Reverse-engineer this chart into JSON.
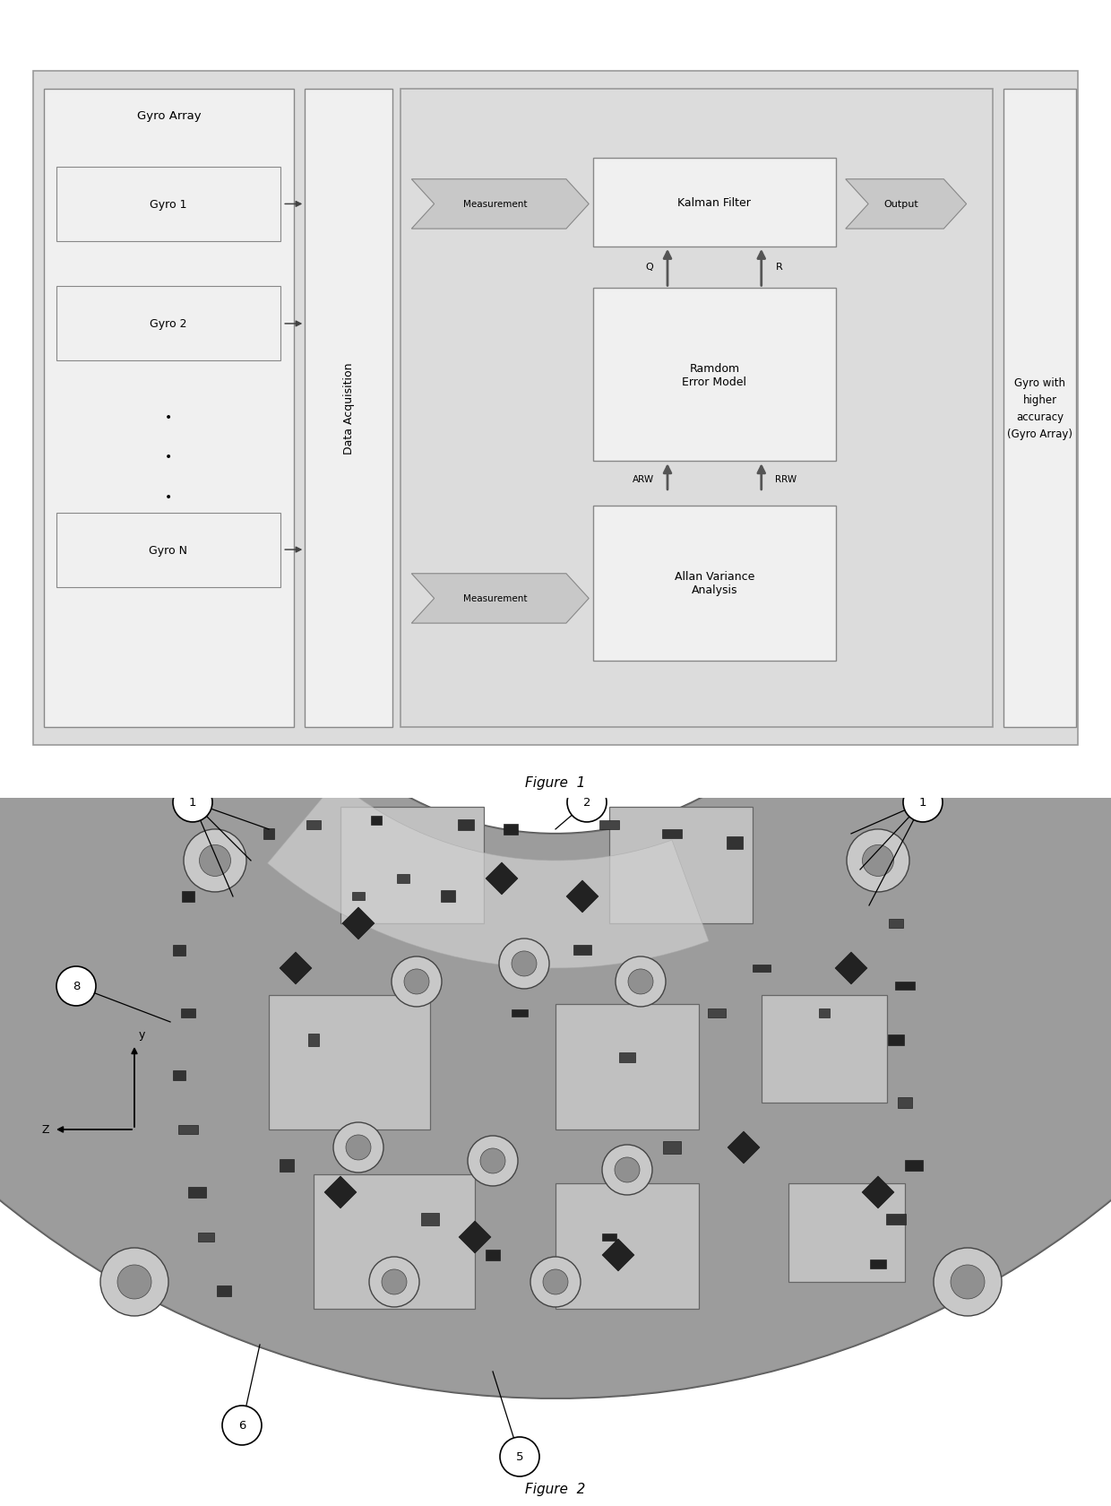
{
  "fig_width": 12.4,
  "fig_height": 16.81,
  "bg_color": "#ffffff",
  "fig1": {
    "title": "Figure  1",
    "outer_bg": "#dcdcdc",
    "box_bg": "#f0f0f0",
    "gyro_array_label": "Gyro Array",
    "gyros": [
      "Gyro 1",
      "Gyro 2",
      "Gyro N"
    ],
    "data_acq_label": "Data Acquisition",
    "measurement_label": "Measurement",
    "kalman_label": "Kalman Filter",
    "output_label": "Output",
    "random_error_label": "Ramdom\nError Model",
    "q_label": "Q",
    "r_label": "R",
    "arw_label": "ARW",
    "rrw_label": "RRW",
    "allan_label": "Allan Variance\nAnalysis",
    "gyro_result_label": "Gyro with\nhigher\naccuracy\n(Gyro Array)"
  },
  "fig2": {
    "title": "Figure  2",
    "y_axis_label": "y",
    "z_axis_label": "Z"
  }
}
